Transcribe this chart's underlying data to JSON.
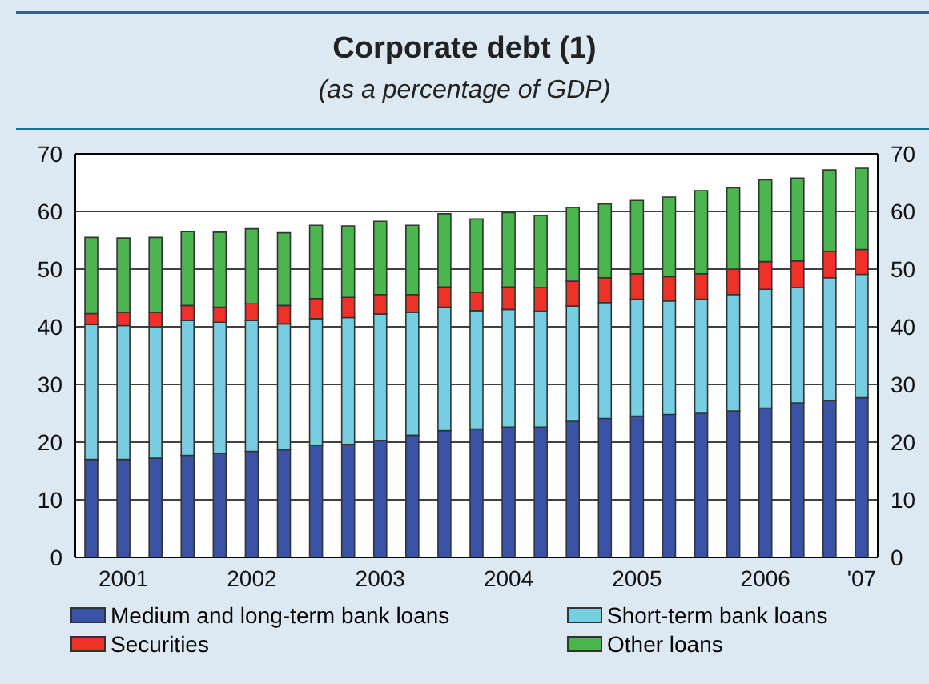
{
  "chart_data": {
    "type": "bar",
    "title": "Corporate debt (1)",
    "subtitle": "(as a percentage of GDP)",
    "stacked": true,
    "categories": [
      null,
      "2001",
      null,
      null,
      null,
      "2002",
      null,
      null,
      null,
      "2003",
      null,
      null,
      null,
      "2004",
      null,
      null,
      null,
      "2005",
      null,
      null,
      null,
      "2006",
      null,
      null,
      "'07"
    ],
    "series": [
      {
        "name": "Medium and long-term bank loans",
        "color": "#3a53a4",
        "values": [
          17.0,
          17.0,
          17.2,
          17.7,
          18.1,
          18.4,
          18.7,
          19.4,
          19.6,
          20.3,
          21.2,
          22.0,
          22.3,
          22.6,
          22.6,
          23.6,
          24.1,
          24.5,
          24.8,
          25.0,
          25.4,
          25.9,
          26.8,
          27.2,
          27.7
        ]
      },
      {
        "name": "Short-term bank loans",
        "color": "#76cfe0",
        "values": [
          23.4,
          23.2,
          22.8,
          23.4,
          22.7,
          22.7,
          21.8,
          22.0,
          22.0,
          21.9,
          21.3,
          21.4,
          20.5,
          20.4,
          20.1,
          20.0,
          20.1,
          20.3,
          19.7,
          19.8,
          20.2,
          20.6,
          20.0,
          21.3,
          21.4
        ]
      },
      {
        "name": "Securities",
        "color": "#ee3129",
        "values": [
          1.9,
          2.3,
          2.5,
          2.6,
          2.6,
          2.9,
          3.2,
          3.5,
          3.5,
          3.4,
          3.1,
          3.5,
          3.2,
          3.9,
          4.1,
          4.3,
          4.3,
          4.4,
          4.2,
          4.4,
          4.4,
          4.8,
          4.6,
          4.6,
          4.3
        ]
      },
      {
        "name": "Other loans",
        "color": "#4bb64d",
        "values": [
          13.2,
          12.9,
          13.0,
          12.8,
          13.0,
          13.0,
          12.6,
          12.7,
          12.4,
          12.7,
          12.0,
          12.7,
          12.7,
          12.9,
          12.5,
          12.8,
          12.8,
          12.7,
          13.8,
          14.4,
          14.1,
          14.2,
          14.4,
          14.1,
          14.1
        ]
      }
    ],
    "ylim": [
      0,
      70
    ],
    "yticks": [
      0,
      10,
      20,
      30,
      40,
      50,
      60,
      70
    ],
    "y2lim": [
      0,
      70
    ],
    "y2ticks": [
      0,
      10,
      20,
      30,
      40,
      50,
      60,
      70
    ],
    "grid": "y",
    "legend": "bottom"
  }
}
